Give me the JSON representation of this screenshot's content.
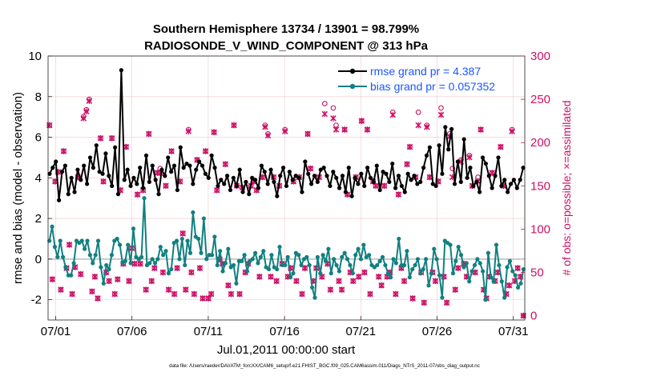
{
  "chart_data": {
    "type": "line",
    "title": "Southern Hemisphere 13734 / 13901 = 98.799%",
    "subtitle": "RADIOSONDE_V_WIND_COMPONENT @ 313 hPa",
    "xlabel": "Jul.01,2011 00:00:00 start",
    "ylabel": "rmse and bias (model - observation)",
    "y2label": "# of obs: o=possible; ×=assimilated",
    "footnote": "data file: /Users/raeder/DAI/ATM_forcXX/CAM6_setup/f.e21.FHIST_BGC.f09_025.CAM6assim.011/Diags_NTrS_2011-07/obs_diag_output.nc",
    "xlim": [
      0.5,
      31.75
    ],
    "ylim": [
      -3,
      10
    ],
    "y2lim": [
      -5,
      300
    ],
    "x_ticks": [
      "07/01",
      "07/06",
      "07/11",
      "07/16",
      "07/21",
      "07/26",
      "07/31"
    ],
    "x_tick_values": [
      1,
      6,
      11,
      16,
      21,
      26,
      31
    ],
    "y_ticks": [
      -2,
      0,
      2,
      4,
      6,
      8,
      10
    ],
    "y2_ticks": [
      0,
      50,
      100,
      150,
      200,
      250,
      300
    ],
    "series": [
      {
        "name": "rmse grand pr = 4.387",
        "color": "#000000",
        "values": [
          4.2,
          4.5,
          4.8,
          2.9,
          4.3,
          4.6,
          3.2,
          4.0,
          3.3,
          4.4,
          3.9,
          4.6,
          3.7,
          5.0,
          4.5,
          5.6,
          4.3,
          4.2,
          5.2,
          4.1,
          3.6,
          5.5,
          3.2,
          9.3,
          3.9,
          4.4,
          3.6,
          4.0,
          3.7,
          4.5,
          3.5,
          5.1,
          3.8,
          4.6,
          3.9,
          3.2,
          4.4,
          4.1,
          5.0,
          4.3,
          4.6,
          3.4,
          5.5,
          4.5,
          4.7,
          4.6,
          3.7,
          4.4,
          4.8,
          4.6,
          4.2,
          4.0,
          5.1,
          4.5,
          3.6,
          3.9,
          3.7,
          4.1,
          3.4,
          4.0,
          3.6,
          4.4,
          3.3,
          3.8,
          3.2,
          4.0,
          3.9,
          3.5,
          4.6,
          4.3,
          3.7,
          4.4,
          3.8,
          3.1,
          4.1,
          4.5,
          3.6,
          4.3,
          3.9,
          4.1,
          4.0,
          3.3,
          4.8,
          4.2,
          3.7,
          4.1,
          3.8,
          4.4,
          4.5,
          4.1,
          3.6,
          4.3,
          4.0,
          3.5,
          4.1,
          3.3,
          4.5,
          3.1,
          4.0,
          3.7,
          4.2,
          3.6,
          4.5,
          4.0,
          3.8,
          4.6,
          3.4,
          4.3,
          4.2,
          3.8,
          4.7,
          3.5,
          4.1,
          3.6,
          3.3,
          4.2,
          3.9,
          4.1,
          3.7,
          3.8,
          4.5,
          5.1,
          5.5,
          3.7,
          3.6,
          5.6,
          4.2,
          6.5,
          5.4,
          6.4,
          3.7,
          4.8,
          3.8,
          5.9,
          4.0,
          4.5,
          3.6,
          3.8,
          3.3,
          5.0,
          4.7,
          4.1,
          3.5,
          4.1,
          5.0,
          3.6,
          3.9,
          3.3,
          3.7,
          3.9,
          3.5,
          3.9,
          4.5
        ]
      },
      {
        "name": "bias grand pr = 0.057352",
        "color": "#118080",
        "values": [
          0.9,
          1.6,
          0.6,
          0.1,
          0.9,
          0.1,
          -0.4,
          -0.8,
          -0.8,
          -0.2,
          0.9,
          0.8,
          0.9,
          0.5,
          0.9,
          0.2,
          -0.2,
          0.2,
          0.9,
          -0.4,
          -1.2,
          -0.3,
          -0.5,
          0.2,
          0.9,
          1.0,
          0.7,
          -0.2,
          -0.1,
          0.7,
          -0.2,
          1.5,
          0.1,
          0.0,
          0.1,
          3.0,
          -0.3,
          -0.2,
          0.0,
          -0.2,
          0.0,
          0.6,
          0.2,
          0.4,
          -0.7,
          -0.5,
          0.8,
          0.9,
          0.0,
          1.0,
          -0.3,
          0.9,
          0.3,
          2.3,
          1.1,
          1.0,
          0.3,
          2.0,
          0.0,
          0.2,
          0.2,
          1.1,
          -0.3,
          0.4,
          -0.6,
          -0.2,
          0.5,
          -0.4,
          -0.3,
          -1.2,
          -0.1,
          -0.1,
          0.2,
          -0.6,
          -0.1,
          0.0,
          0.3,
          -0.2,
          0.1,
          0.4,
          -0.4,
          -0.5,
          0.2,
          -0.4,
          -0.5,
          0.6,
          -0.3,
          -0.3,
          0.1,
          -0.9,
          -0.7,
          0.3,
          0.2,
          -0.3,
          0.0,
          0.1,
          -0.3,
          -1.4,
          -1.9,
          0.1,
          -0.7,
          0.2,
          -0.1,
          0.5,
          -0.7,
          0.0,
          -0.3,
          -0.6,
          0.1,
          0.3,
          0.0,
          -0.3,
          -0.7,
          0.2,
          0.5,
          0.0,
          0.7,
          0.1,
          0.2,
          -0.3,
          -0.4,
          -0.3,
          -0.1,
          0.1,
          -0.3,
          -0.7,
          -0.9,
          0.0,
          -0.2,
          1.0,
          -0.3,
          -0.3,
          0.4,
          -0.9,
          -0.5,
          -0.3,
          0.0,
          -0.7,
          -0.5,
          0.0,
          -1.3,
          -0.7,
          0.5,
          0.0,
          -0.8,
          -1.9,
          0.9,
          0.8,
          0.7,
          -0.7,
          -0.1,
          0.6,
          0.2,
          -0.4,
          -0.2,
          -1.1,
          -0.6,
          -0.3,
          0.0,
          -0.2,
          -0.6,
          -2.0,
          0.3,
          -0.9,
          -1.1,
          0.7,
          -0.3,
          -1.1,
          -1.9,
          -0.4,
          -0.1,
          -0.6,
          -0.8,
          -1.4,
          -1.2,
          -0.5
        ]
      },
      {
        "name": "# of obs possible",
        "color": "#cc1166",
        "axis": "right",
        "values": [
          220,
          42,
          155,
          166,
          30,
          190,
          55,
          82,
          25,
          56,
          160,
          48,
          230,
          238,
          250,
          28,
          45,
          20,
          205,
          155,
          50,
          40,
          205,
          25,
          42,
          145,
          60,
          195,
          40,
          78,
          60,
          140,
          60,
          145,
          30,
          210,
          40,
          55,
          165,
          170,
          50,
          150,
          30,
          190,
          25,
          55,
          155,
          95,
          30,
          215,
          50,
          25,
          180,
          55,
          20,
          190,
          20,
          25,
          212,
          145,
          65,
          60,
          175,
          35,
          25,
          220,
          150,
          25,
          148,
          50,
          60,
          150,
          155,
          145,
          45,
          160,
          220,
          210,
          45,
          160,
          40,
          150,
          60,
          215,
          45,
          55,
          155,
          40,
          160,
          25,
          55,
          210,
          170,
          40,
          55,
          160,
          45,
          245,
          60,
          30,
          240,
          220,
          40,
          30,
          215,
          140,
          50,
          40,
          160,
          45,
          225,
          50,
          215,
          25,
          155,
          150,
          45,
          35,
          150,
          45,
          50,
          235,
          25,
          140,
          55,
          40,
          175,
          195,
          20,
          160,
          235,
          50,
          15,
          220,
          160,
          50,
          40,
          155,
          240,
          45,
          15,
          210,
          170,
          30,
          55,
          180,
          60,
          45,
          185,
          150,
          50,
          160,
          215,
          30,
          20,
          45,
          165,
          40,
          50,
          195,
          150,
          25,
          35,
          215,
          40,
          55,
          45,
          0
        ]
      },
      {
        "name": "# of obs assimilated",
        "color": "#cc1166",
        "axis": "right",
        "values": [
          220,
          42,
          155,
          166,
          30,
          190,
          55,
          82,
          25,
          56,
          160,
          48,
          228,
          236,
          248,
          28,
          45,
          20,
          205,
          155,
          50,
          40,
          205,
          25,
          42,
          145,
          60,
          195,
          40,
          78,
          60,
          140,
          60,
          145,
          30,
          210,
          40,
          55,
          165,
          165,
          50,
          150,
          30,
          190,
          25,
          55,
          155,
          95,
          30,
          213,
          50,
          25,
          180,
          55,
          20,
          190,
          20,
          25,
          212,
          145,
          65,
          60,
          175,
          35,
          25,
          220,
          150,
          25,
          148,
          50,
          60,
          150,
          155,
          145,
          45,
          160,
          218,
          208,
          45,
          160,
          40,
          150,
          60,
          213,
          45,
          55,
          155,
          40,
          160,
          25,
          55,
          210,
          170,
          40,
          55,
          160,
          45,
          233,
          60,
          30,
          228,
          215,
          40,
          30,
          215,
          140,
          50,
          40,
          160,
          45,
          225,
          50,
          215,
          25,
          155,
          150,
          45,
          35,
          150,
          45,
          50,
          232,
          25,
          140,
          55,
          40,
          175,
          195,
          20,
          160,
          220,
          50,
          15,
          218,
          160,
          50,
          40,
          155,
          232,
          45,
          15,
          207,
          160,
          30,
          55,
          178,
          60,
          45,
          183,
          150,
          50,
          155,
          215,
          30,
          20,
          45,
          165,
          40,
          50,
          195,
          150,
          25,
          35,
          213,
          40,
          55,
          45,
          0
        ]
      }
    ]
  }
}
